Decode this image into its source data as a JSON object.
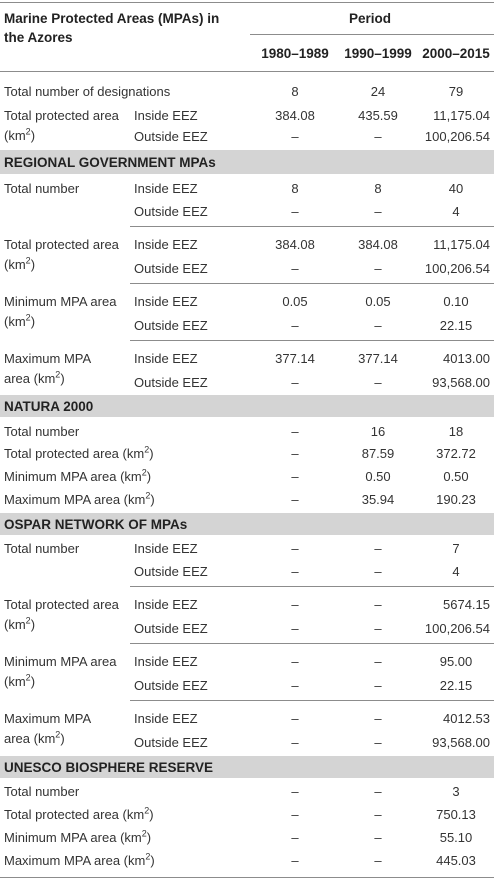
{
  "header": {
    "title_line1": "Marine Protected Areas (MPAs) in",
    "title_line2": "the Azores",
    "period": "Period",
    "col1": "1980–1989",
    "col2": "1990–1999",
    "col3": "2000–2015"
  },
  "overall": {
    "designations_label": "Total number of designations",
    "designations": [
      "8",
      "24",
      "79"
    ],
    "area_label1": "Total protected area",
    "area_label2": "(km",
    "area_label2_sup": "2",
    "area_label2_end": ")",
    "inside": "Inside EEZ",
    "outside": "Outside EEZ",
    "area_inside": [
      "384.08",
      "435.59",
      "11,175.04"
    ],
    "area_outside": [
      "–",
      "–",
      "100,206.54"
    ]
  },
  "regional": {
    "title": "REGIONAL GOVERNMENT MPAs",
    "total_number_label": "Total number",
    "inside": "Inside EEZ",
    "outside": "Outside EEZ",
    "total_inside": [
      "8",
      "8",
      "40"
    ],
    "total_outside": [
      "–",
      "–",
      "4"
    ],
    "area_label1": "Total protected area",
    "area_label2": "(km",
    "area_label2_sup": "2",
    "area_label2_end": ")",
    "area_inside": [
      "384.08",
      "384.08",
      "11,175.04"
    ],
    "area_outside": [
      "–",
      "–",
      "100,206.54"
    ],
    "min_label1": "Minimum MPA area",
    "min_label2": "(km",
    "min_label2_sup": "2",
    "min_label2_end": ")",
    "min_inside": [
      "0.05",
      "0.05",
      "0.10"
    ],
    "min_outside": [
      "–",
      "–",
      "22.15"
    ],
    "max_label1": "Maximum MPA",
    "max_label2": "area (km",
    "max_label2_sup": "2",
    "max_label2_end": ")",
    "max_inside": [
      "377.14",
      "377.14",
      "4013.00"
    ],
    "max_outside": [
      "–",
      "–",
      "93,568.00"
    ]
  },
  "natura": {
    "title": "NATURA 2000",
    "total_label": "Total number",
    "total": [
      "–",
      "16",
      "18"
    ],
    "area_label": "Total protected area (km",
    "area_sup": "2",
    "area_end": ")",
    "area": [
      "–",
      "87.59",
      "372.72"
    ],
    "min_label": "Minimum MPA area (km",
    "min_sup": "2",
    "min_end": ")",
    "min": [
      "–",
      "0.50",
      "0.50"
    ],
    "max_label": "Maximum MPA area (km",
    "max_sup": "2",
    "max_end": ")",
    "max": [
      "–",
      "35.94",
      "190.23"
    ]
  },
  "ospar": {
    "title": "OSPAR NETWORK OF MPAs",
    "total_number_label": "Total number",
    "inside": "Inside EEZ",
    "outside": "Outside EEZ",
    "total_inside": [
      "–",
      "–",
      "7"
    ],
    "total_outside": [
      "–",
      "–",
      "4"
    ],
    "area_label1": "Total protected area",
    "area_label2": "(km",
    "area_label2_sup": "2",
    "area_label2_end": ")",
    "area_inside": [
      "–",
      "–",
      "5674.15"
    ],
    "area_outside": [
      "–",
      "–",
      "100,206.54"
    ],
    "min_label1": "Minimum MPA area",
    "min_label2": "(km",
    "min_label2_sup": "2",
    "min_label2_end": ")",
    "min_inside": [
      "–",
      "–",
      "95.00"
    ],
    "min_outside": [
      "–",
      "–",
      "22.15"
    ],
    "max_label1": "Maximum MPA",
    "max_label2": "area (km",
    "max_label2_sup": "2",
    "max_label2_end": ")",
    "max_inside": [
      "–",
      "–",
      "4012.53"
    ],
    "max_outside": [
      "–",
      "–",
      "93,568.00"
    ]
  },
  "unesco": {
    "title": "UNESCO BIOSPHERE RESERVE",
    "total_label": "Total number",
    "total": [
      "–",
      "–",
      "3"
    ],
    "area_label": "Total protected area (km",
    "area_sup": "2",
    "area_end": ")",
    "area": [
      "–",
      "–",
      "750.13"
    ],
    "min_label": "Minimum MPA area (km",
    "min_sup": "2",
    "min_end": ")",
    "min": [
      "–",
      "–",
      "55.10"
    ],
    "max_label": "Maximum MPA area (km",
    "max_sup": "2",
    "max_end": ")",
    "max": [
      "–",
      "–",
      "445.03"
    ]
  },
  "colors": {
    "band": "#d4d4d4",
    "rule": "#8c8c8c",
    "text": "#333333"
  }
}
